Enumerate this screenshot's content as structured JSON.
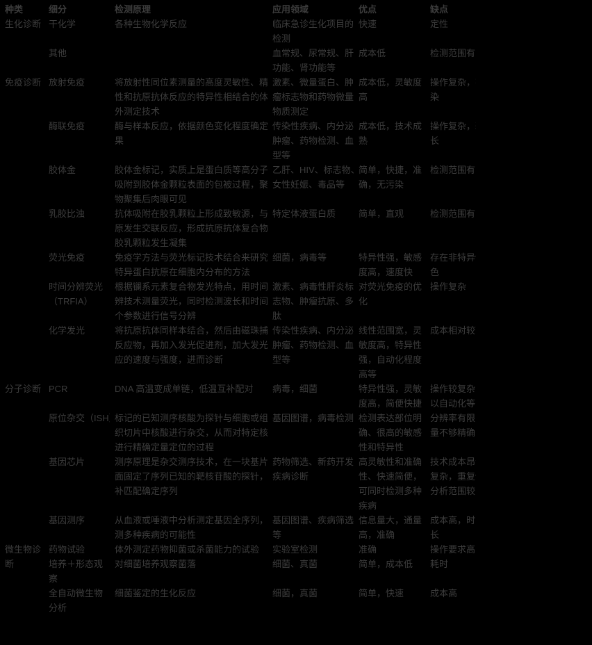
{
  "colors": {
    "background": "#000000",
    "text": "#3c3c3c"
  },
  "table": {
    "headers": [
      "种类",
      "细分",
      "检测原理",
      "应用领域",
      "优点",
      "缺点"
    ],
    "groups": [
      {
        "category": "生化诊断",
        "rows": [
          {
            "sub": "干化学",
            "principle": "各种生物化学反应",
            "application": "临床急诊生化项目的\n检测",
            "pros": "快速",
            "cons": "定性"
          },
          {
            "sub": "其他",
            "principle": "",
            "application": "血常规、尿常规、肝\n功能、肾功能等",
            "pros": "成本低",
            "cons": "检测范围有限"
          }
        ]
      },
      {
        "category": "免疫诊断",
        "rows": [
          {
            "sub": "放射免疫",
            "principle": "将放射性同位素测量的高度灵敏性、精确\n性和抗原抗体反应的特异性相结合的体\n外测定技术",
            "application": "激素、微量蛋白、肿\n瘤标志物和药物微量\n物质测定",
            "pros": "成本低，灵敏度\n高",
            "cons": "操作复杂，有污\n染"
          },
          {
            "sub": "酶联免疫",
            "principle": "酶与样本反应，依据颜色变化程度确定结\n果",
            "application": "传染性疾病、内分泌、\n肿瘤、药物检测、血\n型等",
            "pros": "成本低，技术成\n熟",
            "cons": "操作复杂，耗时\n长"
          },
          {
            "sub": "胶体金",
            "principle": "胶体金标记，实质上是蛋白质等高分子被\n吸附到胶体金颗粒表面的包被过程，聚合\n物聚集后肉眼可见",
            "application": "乙肝、HIV、标志物、\n女性妊娠、毒品等",
            "pros": "简单，快捷，准\n确，无污染",
            "cons": "检测范围有限"
          },
          {
            "sub": "乳胶比浊",
            "principle": "抗体吸附在胶乳颗粒上形成致敏源，与抗\n原发生交联反应，形成抗原抗体复合物，\n胶乳颗粒发生凝集",
            "application": "特定体液蛋白质",
            "pros": "简单，直观",
            "cons": "检测范围有限"
          },
          {
            "sub": "荧光免疫",
            "principle": "免疫学方法与荧光标记技术结合来研究\n特异蛋白抗原在细胞内分布的方法",
            "application": "细菌，病毒等",
            "pros": "特异性强，敏感\n度高，速度快",
            "cons": "存在非特异性着\n色"
          },
          {
            "sub": "时间分辨荧光\n（TRFIA）",
            "principle": "根据镧系元素复合物发光特点，用时间分\n辨技术测量荧光，同时检测波长和时间两\n个参数进行信号分辨",
            "application": "激素、病毒性肝炎标\n志物、肿瘤抗原、多\n肽",
            "pros": "对荧光免疫的优\n化",
            "cons": "操作复杂"
          },
          {
            "sub": "化学发光",
            "principle": "将抗原抗体同样本结合，然后由磁珠捕捉\n反应物，再加入发光促进剂，加大发光反\n应的速度与强度，进而诊断",
            "application": "传染性疾病、内分泌、\n肿瘤、药物检测、血\n型等",
            "pros": "线性范围宽，灵\n敏度高，特异性\n强，自动化程度\n高等",
            "cons": "成本相对较高"
          }
        ]
      },
      {
        "category": "分子诊断",
        "rows": [
          {
            "sub": "PCR",
            "principle": "DNA 高温变成单链，低温互补配对",
            "application": "病毒，细菌",
            "pros": "特异性强，灵敏\n度高，简便快捷",
            "cons": "操作较复杂，可\n以自动化等"
          },
          {
            "sub": "原位杂交（ISH）",
            "principle": "标记的已知测序核酸为探针与细胞或组\n织切片中核酸进行杂交，从而对特定核酸\n进行精确定量定位的过程",
            "application": "基因图谱，病毒检测",
            "pros": "检测表达部位明\n确、很高的敏感\n性和特异性",
            "cons": "分辨率有限，定\n量不够精确"
          },
          {
            "sub": "基因芯片",
            "principle": "测序原理是杂交测序技术，在一块基片表\n面固定了序列已知的靶核苷酸的探针，互\n补匹配确定序列",
            "application": "药物筛选、新药开发、\n疾病诊断",
            "pros": "高灵敏性和准确\n性、快速简便，\n可同时检测多种\n疾病",
            "cons": "技术成本昂贵，\n复杂，重复性差\n分析范围较窄"
          },
          {
            "sub": "基因测序",
            "principle": "从血液或唾液中分析测定基因全序列，预\n测多种疾病的可能性",
            "application": "基因图谱、疾病筛选\n等",
            "pros": "信息量大，通量\n高，准确",
            "cons": "成本高，时间\n长"
          }
        ]
      },
      {
        "category": "微生物诊\n断",
        "rows": [
          {
            "sub": "药物试验",
            "principle": "体外测定药物抑菌或杀菌能力的试验",
            "application": "实验室检测",
            "pros": "准确",
            "cons": "操作要求高"
          },
          {
            "sub": "培养＋形态观\n察",
            "principle": "对细菌培养观察菌落",
            "application": "细菌、真菌",
            "pros": "简单，成本低",
            "cons": "耗时"
          },
          {
            "sub": "全自动微生物\n分析",
            "principle": "细菌鉴定的生化反应",
            "application": "细菌，真菌",
            "pros": "简单，快速",
            "cons": "成本高"
          }
        ]
      }
    ]
  }
}
